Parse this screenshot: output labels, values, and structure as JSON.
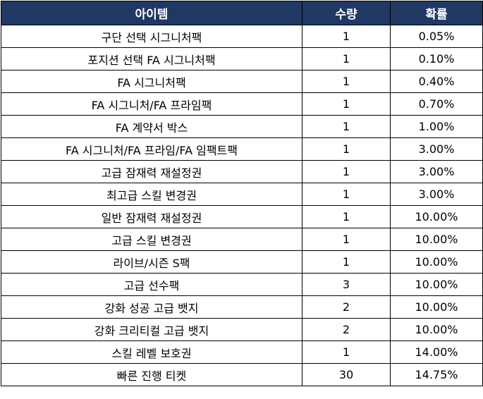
{
  "table": {
    "header": [
      "아이템",
      "수량",
      "확률"
    ],
    "rows": [
      [
        "구단 선택 시그니처팩",
        "1",
        "0.05%"
      ],
      [
        "포지션 선택 FA 시그니처팩",
        "1",
        "0.10%"
      ],
      [
        "FA 시그니처팩",
        "1",
        "0.40%"
      ],
      [
        "FA 시그니처/FA 프라임팩",
        "1",
        "0.70%"
      ],
      [
        "FA 계약서 박스",
        "1",
        "1.00%"
      ],
      [
        "FA 시그니처/FA 프라임/FA 임팩트팩",
        "1",
        "3.00%"
      ],
      [
        "고급 잠재력 재설정권",
        "1",
        "3.00%"
      ],
      [
        "최고급 스킬 변경권",
        "1",
        "3.00%"
      ],
      [
        "일반 잠재력 재설정권",
        "1",
        "10.00%"
      ],
      [
        "고급 스킬 변경권",
        "1",
        "10.00%"
      ],
      [
        "라이브/시즌 S팩",
        "1",
        "10.00%"
      ],
      [
        "고급 선수팩",
        "3",
        "10.00%"
      ],
      [
        "강화 성공 고급 뱃지",
        "2",
        "10.00%"
      ],
      [
        "강화 크리티컬 고급 뱃지",
        "2",
        "10.00%"
      ],
      [
        "스킬 레벨 보호권",
        "1",
        "14.00%"
      ],
      [
        "빠른 진행 티켓",
        "30",
        "14.75%"
      ]
    ]
  }
}
